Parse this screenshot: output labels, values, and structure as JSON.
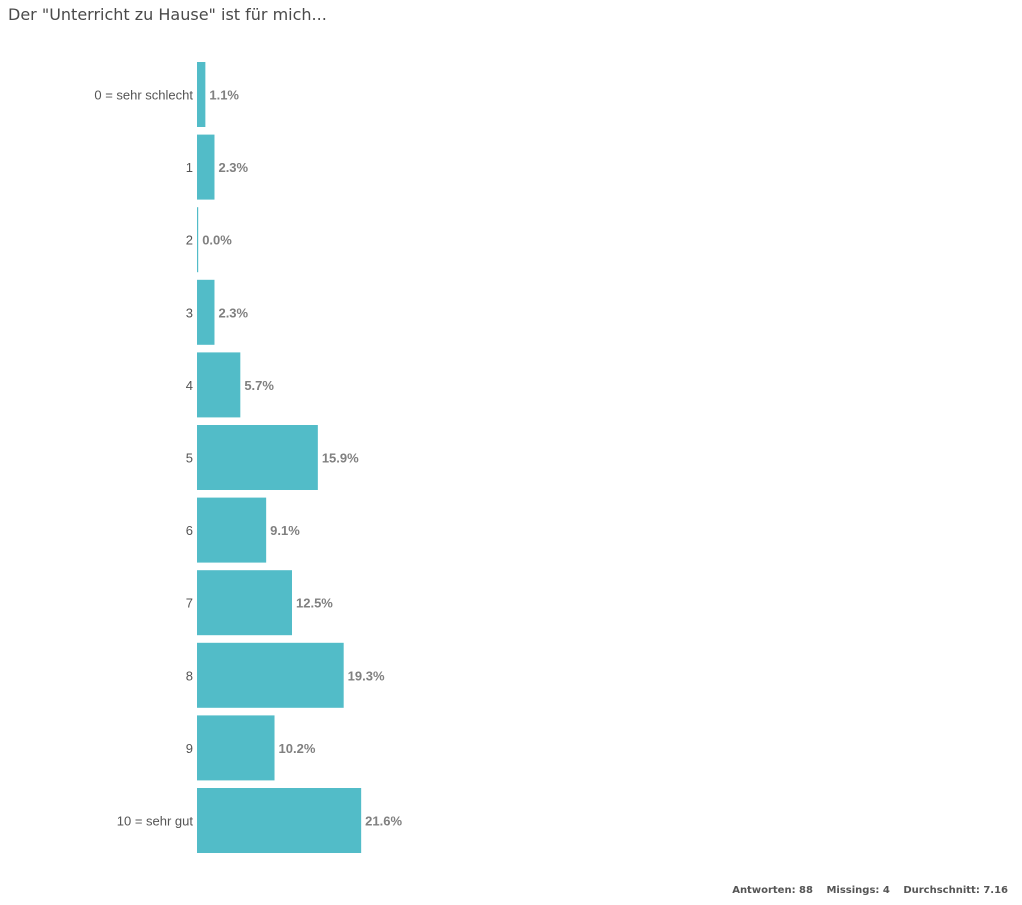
{
  "title": "Der \"Unterricht zu Hause\" ist für mich...",
  "chart_data": {
    "type": "bar",
    "orientation": "horizontal",
    "categories": [
      "0 = sehr schlecht",
      "1",
      "2",
      "3",
      "4",
      "5",
      "6",
      "7",
      "8",
      "9",
      "10 = sehr gut"
    ],
    "values": [
      1.1,
      2.3,
      0.0,
      2.3,
      5.7,
      15.9,
      9.1,
      12.5,
      19.3,
      10.2,
      21.6
    ],
    "value_labels": [
      "1.1%",
      "2.3%",
      "0.0%",
      "2.3%",
      "5.7%",
      "15.9%",
      "9.1%",
      "12.5%",
      "19.3%",
      "10.2%",
      "21.6%"
    ],
    "bar_color": "#52bcc8",
    "grid": false,
    "legend": "none"
  },
  "stats": {
    "answers": "Antworten: 88",
    "missings": "Missings: 4",
    "average": "Durchschnitt: 7.16"
  }
}
